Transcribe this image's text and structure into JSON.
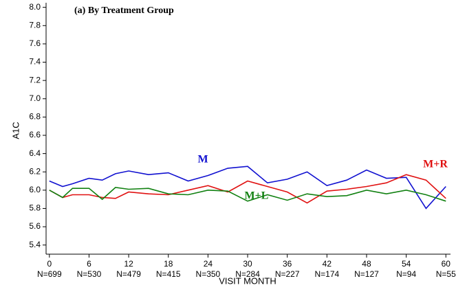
{
  "chart_data": {
    "type": "line",
    "title": "(a)  By Treatment Group",
    "x_label": "VISIT MONTH",
    "y_label": "A1C",
    "x": [
      0,
      2,
      3.5,
      6,
      8,
      10,
      12,
      15,
      18,
      21,
      24,
      27,
      30,
      33,
      36,
      39,
      42,
      45,
      48,
      51,
      54,
      57,
      60
    ],
    "series": [
      {
        "name": "M",
        "color": "#1010d0",
        "values": [
          6.1,
          6.04,
          6.07,
          6.13,
          6.11,
          6.18,
          6.21,
          6.17,
          6.19,
          6.1,
          6.16,
          6.24,
          6.26,
          6.08,
          6.12,
          6.2,
          6.05,
          6.11,
          6.22,
          6.13,
          6.14,
          5.8,
          6.04
        ]
      },
      {
        "name": "M+R",
        "color": "#e01010",
        "values": [
          6.0,
          5.92,
          5.95,
          5.95,
          5.92,
          5.91,
          5.98,
          5.96,
          5.95,
          6.0,
          6.05,
          5.98,
          6.1,
          6.04,
          5.98,
          5.86,
          5.99,
          6.01,
          6.04,
          6.08,
          6.17,
          6.11,
          5.91
        ]
      },
      {
        "name": "M+L",
        "color": "#108010",
        "values": [
          6.0,
          5.92,
          6.02,
          6.02,
          5.9,
          6.03,
          6.01,
          6.02,
          5.96,
          5.95,
          6.0,
          5.99,
          5.88,
          5.95,
          5.89,
          5.96,
          5.93,
          5.94,
          6.0,
          5.96,
          6.0,
          5.95,
          5.88
        ]
      }
    ],
    "xlim": [
      -0.5,
      60.7
    ],
    "ylim": [
      5.3,
      8.05
    ],
    "xticks": [
      0,
      6,
      12,
      18,
      24,
      30,
      36,
      42,
      48,
      54,
      60
    ],
    "x_sublabels": [
      "N=699",
      "N=530",
      "N=479",
      "N=415",
      "N=350",
      "N=284",
      "N=227",
      "N=174",
      "N=127",
      "N=94",
      "N=55"
    ],
    "yticks": [
      {
        "value": 5.4,
        "label": "5.4"
      },
      {
        "value": 5.6,
        "label": "5.6"
      },
      {
        "value": 5.8,
        "label": "5.8"
      },
      {
        "value": 6.0,
        "label": "6.0"
      },
      {
        "value": 6.2,
        "label": "6.2"
      },
      {
        "value": 6.4,
        "label": "6.4"
      },
      {
        "value": 6.6,
        "label": "6.6"
      },
      {
        "value": 6.8,
        "label": "6.8"
      },
      {
        "value": 7.0,
        "label": "7.0"
      },
      {
        "value": 7.2,
        "label": "7.2"
      },
      {
        "value": 7.4,
        "label": "7.4"
      },
      {
        "value": 7.6,
        "label": "7.6"
      },
      {
        "value": 7.8,
        "label": "7.8"
      },
      {
        "value": 8.0,
        "label": "8.0"
      }
    ],
    "grid": false
  }
}
